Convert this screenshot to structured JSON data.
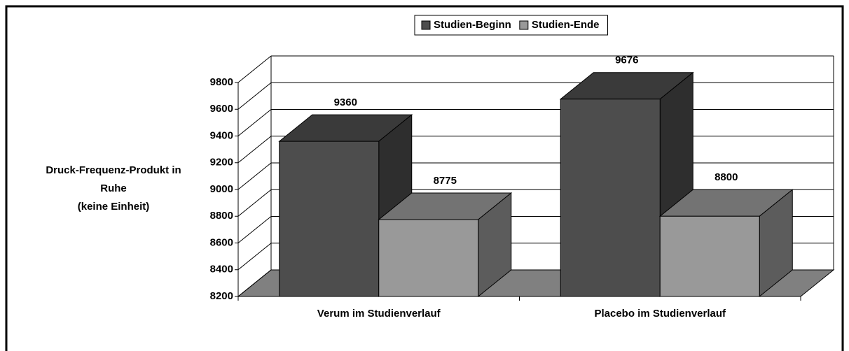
{
  "chart_data": {
    "type": "bar3d",
    "y_label_lines": [
      "Druck-Frequenz-Produkt in",
      "Ruhe",
      "(keine Einheit)"
    ],
    "categories": [
      "Verum im Studienverlauf",
      "Placebo im Studienverlauf"
    ],
    "series": [
      {
        "name": "Studien-Beginn",
        "color": "#4d4d4d",
        "values": [
          9360,
          9676
        ]
      },
      {
        "name": "Studien-Ende",
        "color": "#999999",
        "values": [
          8775,
          8800
        ]
      }
    ],
    "ylim": [
      8200,
      9800
    ],
    "yticks": [
      8200,
      8400,
      8600,
      8800,
      9000,
      9200,
      9400,
      9600,
      9800
    ],
    "grid": true,
    "legend": "top"
  }
}
